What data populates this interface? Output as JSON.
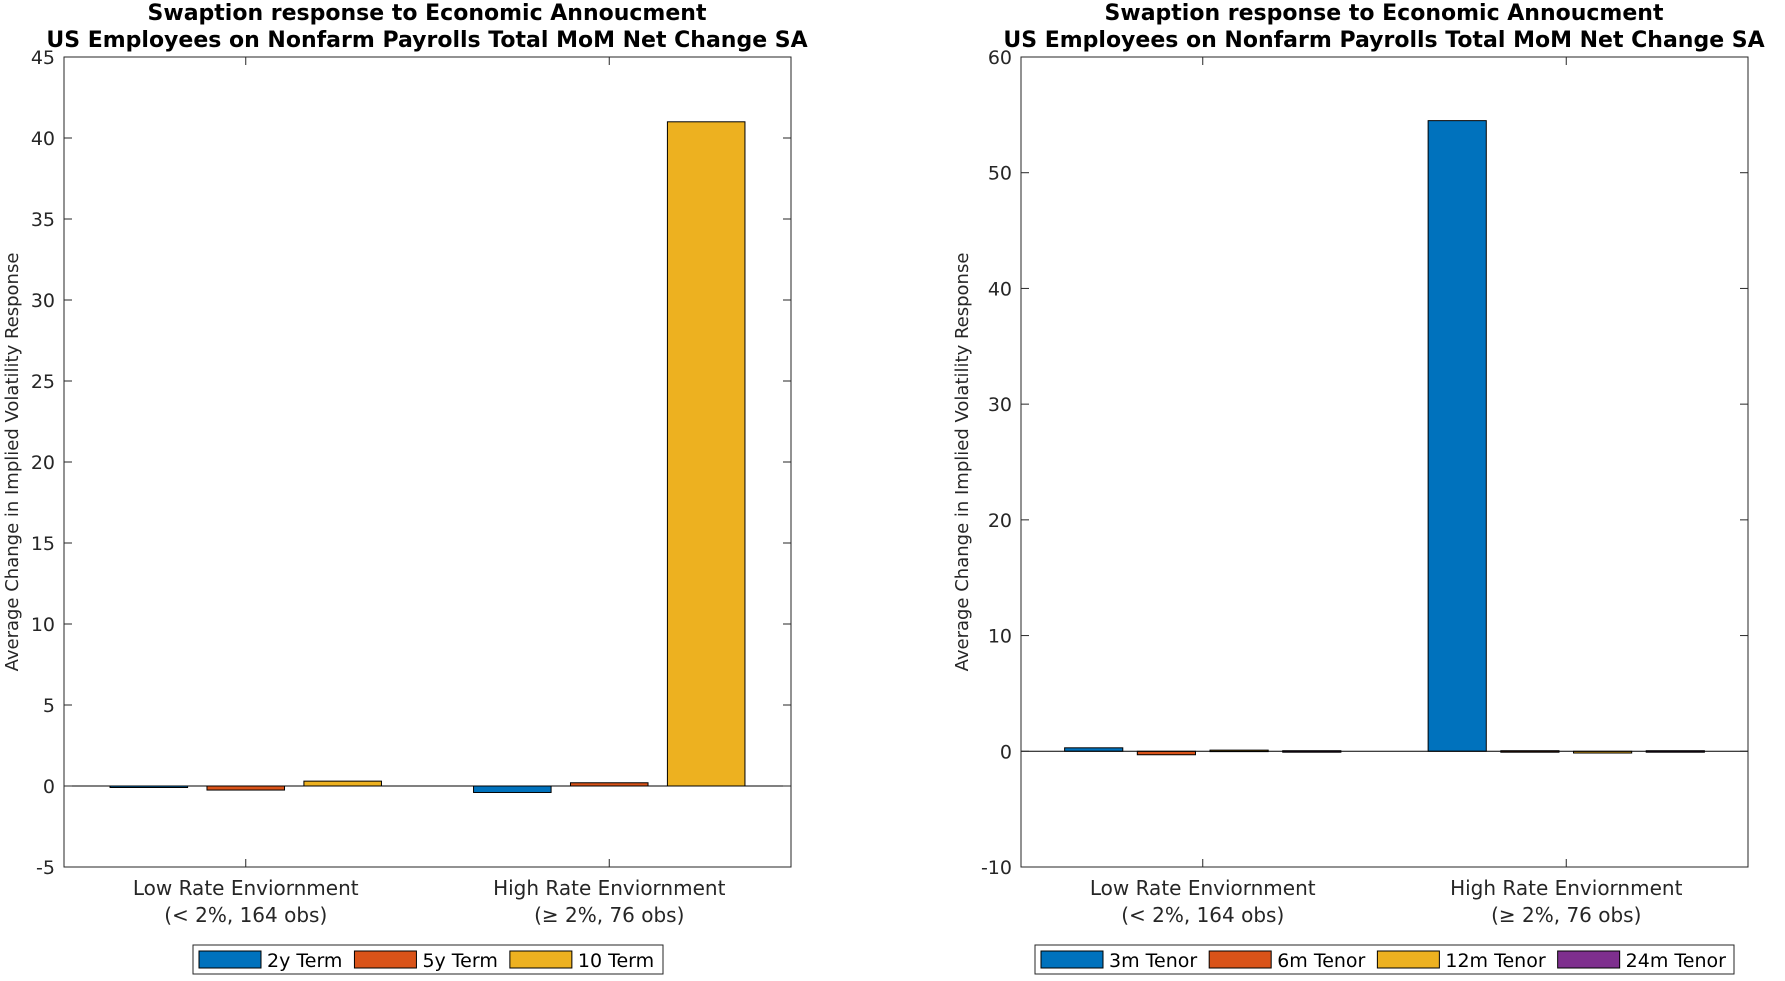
{
  "chart_data": [
    {
      "type": "bar",
      "title": [
        "Swaption response to Economic Annoucment",
        "US Employees on Nonfarm Payrolls Total MoM Net Change SA"
      ],
      "ylabel": "Average Change in Implied Volatility Response",
      "xlabel": "",
      "ylim": [
        -5,
        45
      ],
      "yticks": [
        -5,
        0,
        5,
        10,
        15,
        20,
        25,
        30,
        35,
        40,
        45
      ],
      "ytick_labels": [
        "-5",
        "0",
        "5",
        "10",
        "15",
        "20",
        "25",
        "30",
        "35",
        "40",
        "45"
      ],
      "categories": [
        [
          "Low Rate Enviornment",
          "(< 2%, 164 obs)"
        ],
        [
          "High Rate Enviornment",
          "(≥ 2%, 76 obs)"
        ]
      ],
      "series": [
        {
          "name": "2y Term",
          "color": "#0072BD",
          "values": [
            -0.05,
            -0.4
          ]
        },
        {
          "name": "5y Term",
          "color": "#D95319",
          "values": [
            -0.25,
            0.2
          ]
        },
        {
          "name": "10 Term",
          "color": "#EDB120",
          "values": [
            0.3,
            41.0
          ]
        }
      ],
      "grid": false,
      "legend_position": "bottom-outside"
    },
    {
      "type": "bar",
      "title": [
        "Swaption response to Economic Annoucment",
        "US Employees on Nonfarm Payrolls Total MoM Net Change SA"
      ],
      "ylabel": "Average Change in Implied Volatility Response",
      "xlabel": "",
      "ylim": [
        -10,
        60
      ],
      "yticks": [
        -10,
        0,
        10,
        20,
        30,
        40,
        50,
        60
      ],
      "ytick_labels": [
        "-10",
        "0",
        "10",
        "20",
        "30",
        "40",
        "50",
        "60"
      ],
      "categories": [
        [
          "Low Rate Enviornment",
          "(< 2%, 164 obs)"
        ],
        [
          "High Rate Enviornment",
          "(≥ 2%, 76 obs)"
        ]
      ],
      "series": [
        {
          "name": "3m Tenor",
          "color": "#0072BD",
          "values": [
            0.3,
            54.5
          ]
        },
        {
          "name": "6m Tenor",
          "color": "#D95319",
          "values": [
            -0.3,
            0.05
          ]
        },
        {
          "name": "12m Tenor",
          "color": "#EDB120",
          "values": [
            0.1,
            -0.15
          ]
        },
        {
          "name": "24m Tenor",
          "color": "#7E2F8E",
          "values": [
            0.05,
            0.05
          ]
        }
      ],
      "grid": false,
      "legend_position": "bottom-outside"
    }
  ]
}
